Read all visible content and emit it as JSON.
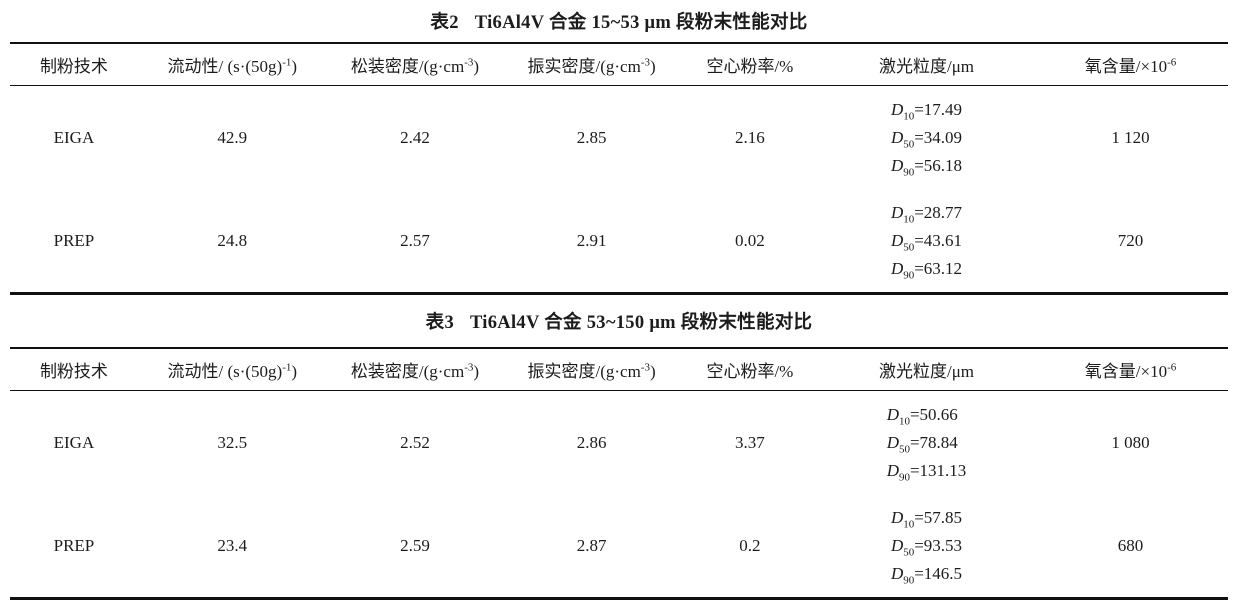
{
  "page": {
    "background": "#ffffff",
    "text_color": "#1c1c1c",
    "rule_color": "#111111"
  },
  "columns": [
    {
      "pre": "制粉技术",
      "sup": "",
      "post": ""
    },
    {
      "pre": "流动性/ (s·(50g)",
      "sup": "-1",
      "post": ")"
    },
    {
      "pre": "松装密度/(g·cm",
      "sup": "-3",
      "post": ")"
    },
    {
      "pre": "振实密度/(g·cm",
      "sup": "-3",
      "post": ")"
    },
    {
      "pre": "空心粉率/%",
      "sup": "",
      "post": ""
    },
    {
      "pre": "激光粒度/μm",
      "sup": "",
      "post": ""
    },
    {
      "pre": "氧含量/×10",
      "sup": "-6",
      "post": ""
    }
  ],
  "tables": [
    {
      "title": {
        "label": "表2",
        "text": "Ti6Al4V 合金 15~53 μm 段粉末性能对比"
      },
      "rows": [
        {
          "technique": "EIGA",
          "flowability": "42.9",
          "apparent_density": "2.42",
          "tap_density": "2.85",
          "hollow_powder_ratio": "2.16",
          "laser_psd": [
            {
              "sym": "D",
              "sub": "10",
              "val": "=17.49"
            },
            {
              "sym": "D",
              "sub": "50",
              "val": "=34.09"
            },
            {
              "sym": "D",
              "sub": "90",
              "val": "=56.18"
            }
          ],
          "oxygen_content": "1 120"
        },
        {
          "technique": "PREP",
          "flowability": "24.8",
          "apparent_density": "2.57",
          "tap_density": "2.91",
          "hollow_powder_ratio": "0.02",
          "laser_psd": [
            {
              "sym": "D",
              "sub": "10",
              "val": "=28.77"
            },
            {
              "sym": "D",
              "sub": "50",
              "val": "=43.61"
            },
            {
              "sym": "D",
              "sub": "90",
              "val": "=63.12"
            }
          ],
          "oxygen_content": "720"
        }
      ]
    },
    {
      "title": {
        "label": "表3",
        "text": "Ti6Al4V 合金 53~150 μm 段粉末性能对比"
      },
      "rows": [
        {
          "technique": "EIGA",
          "flowability": "32.5",
          "apparent_density": "2.52",
          "tap_density": "2.86",
          "hollow_powder_ratio": "3.37",
          "laser_psd": [
            {
              "sym": "D",
              "sub": "10",
              "val": "=50.66"
            },
            {
              "sym": "D",
              "sub": "50",
              "val": "=78.84"
            },
            {
              "sym": "D",
              "sub": "90",
              "val": "=131.13"
            }
          ],
          "oxygen_content": "1 080"
        },
        {
          "technique": "PREP",
          "flowability": "23.4",
          "apparent_density": "2.59",
          "tap_density": "2.87",
          "hollow_powder_ratio": "0.2",
          "laser_psd": [
            {
              "sym": "D",
              "sub": "10",
              "val": "=57.85"
            },
            {
              "sym": "D",
              "sub": "50",
              "val": "=93.53"
            },
            {
              "sym": "D",
              "sub": "90",
              "val": "=146.5"
            }
          ],
          "oxygen_content": "680"
        }
      ]
    }
  ]
}
